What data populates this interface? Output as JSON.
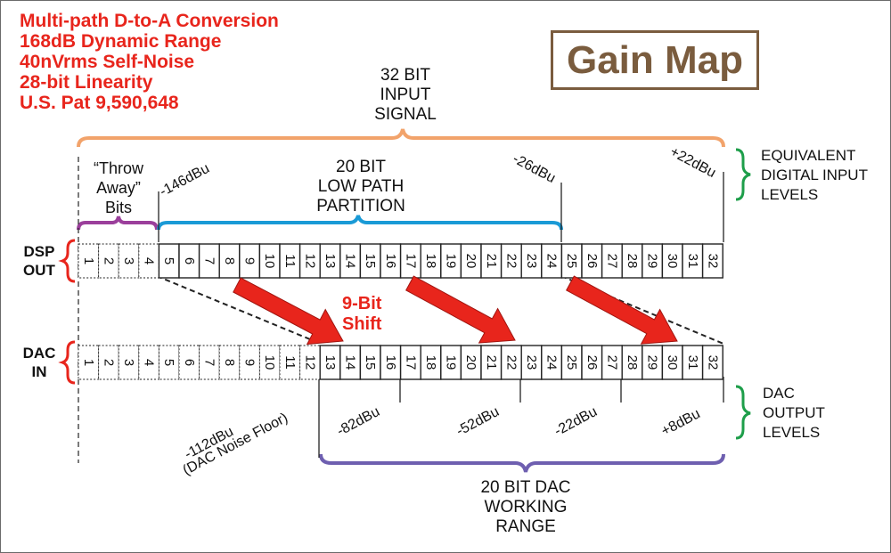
{
  "specs": [
    "Multi-path D-to-A Conversion",
    "168dB Dynamic Range",
    "40nVrms Self-Noise",
    "28-bit Linearity",
    "U.S. Pat 9,590,648"
  ],
  "title": "Gain Map",
  "input_signal_label": [
    "32 BIT",
    "INPUT",
    "SIGNAL"
  ],
  "throw_away_label": [
    "“Throw",
    "Away”",
    "Bits"
  ],
  "low_path_label": [
    "20 BIT",
    "LOW PATH",
    "PARTITION"
  ],
  "equivalent_levels_label": [
    "EQUIVALENT",
    "DIGITAL INPUT",
    "LEVELS"
  ],
  "input_levels": [
    "-146dBu",
    "-26dBu",
    "+22dBu"
  ],
  "dsp_out_label": [
    "DSP",
    "OUT"
  ],
  "dac_in_label": [
    "DAC",
    "IN"
  ],
  "shift_label": [
    "9-Bit",
    "Shift"
  ],
  "bits": [
    "1",
    "2",
    "3",
    "4",
    "5",
    "6",
    "7",
    "8",
    "9",
    "10",
    "11",
    "12",
    "13",
    "14",
    "15",
    "16",
    "17",
    "18",
    "19",
    "20",
    "21",
    "22",
    "23",
    "24",
    "25",
    "26",
    "27",
    "28",
    "29",
    "30",
    "31",
    "32"
  ],
  "dac_output_label": [
    "DAC",
    "OUTPUT",
    "LEVELS"
  ],
  "output_levels": [
    "-112dBu",
    "(DAC Noise Floor)",
    "-82dBu",
    "-52dBu",
    "-22dBu",
    "+8dBu"
  ],
  "dac_range_label": [
    "20 BIT DAC",
    "WORKING",
    "RANGE"
  ],
  "colors": {
    "spec_text": "#e8251c",
    "title": "#7a5c3e",
    "input_brace": "#f2a36b",
    "throw_away_brace": "#9b3f9b",
    "low_path_brace": "#1a9ad6",
    "level_brace": "#1e9e4a",
    "row_brace": "#e8251c",
    "dac_range_brace": "#6e5fb0",
    "arrow": "#e8251c"
  }
}
